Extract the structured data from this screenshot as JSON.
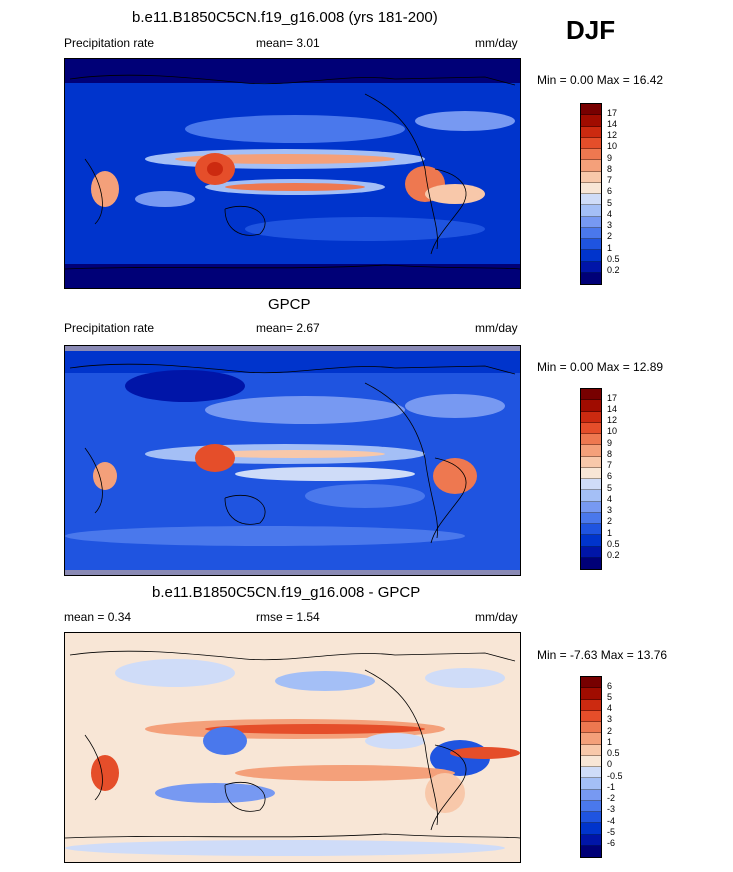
{
  "season": "DJF",
  "panels": [
    {
      "title": "b.e11.B1850C5CN.f19_g16.008 (yrs 181-200)",
      "left_label": "Precipitation rate",
      "center_label": "mean=   3.01",
      "right_label": "mm/day",
      "minmax": "Min =   0.00 Max =  16.42",
      "colorbar_labels": [
        "17",
        "14",
        "12",
        "10",
        "9",
        "8",
        "7",
        "6",
        "5",
        "4",
        "3",
        "2",
        "1",
        "0.5",
        "0.2"
      ]
    },
    {
      "title": "GPCP",
      "left_label": "Precipitation rate",
      "center_label": "mean=   2.67",
      "right_label": "mm/day",
      "minmax": "Min =   0.00 Max =  12.89",
      "colorbar_labels": [
        "17",
        "14",
        "12",
        "10",
        "9",
        "8",
        "7",
        "6",
        "5",
        "4",
        "3",
        "2",
        "1",
        "0.5",
        "0.2"
      ]
    },
    {
      "title": "b.e11.B1850C5CN.f19_g16.008 - GPCP",
      "left_label": "mean =   0.34",
      "center_label": "rmse =   1.54",
      "right_label": "mm/day",
      "minmax": "Min =  -7.63 Max =  13.76",
      "colorbar_labels": [
        "6",
        "5",
        "4",
        "3",
        "2",
        "1",
        "0.5",
        "0",
        "-0.5",
        "-1",
        "-2",
        "-3",
        "-4",
        "-5",
        "-6"
      ]
    }
  ],
  "colors": {
    "precip": [
      "#000077",
      "#0015a8",
      "#0034cc",
      "#1f54e0",
      "#4a78ec",
      "#7799f2",
      "#a4bff6",
      "#cfdcf8",
      "#f8e6d6",
      "#f8c8aa",
      "#f4a07a",
      "#ee7850",
      "#e54e2a",
      "#cc2a10",
      "#a00c00",
      "#770000"
    ],
    "diff": [
      "#000077",
      "#0015a8",
      "#0034cc",
      "#1f54e0",
      "#4a78ec",
      "#7799f2",
      "#a4bff6",
      "#cfdcf8",
      "#f8e6d6",
      "#f8c8aa",
      "#f4a07a",
      "#ee7850",
      "#e54e2a",
      "#cc2a10",
      "#a00c00",
      "#770000"
    ]
  }
}
